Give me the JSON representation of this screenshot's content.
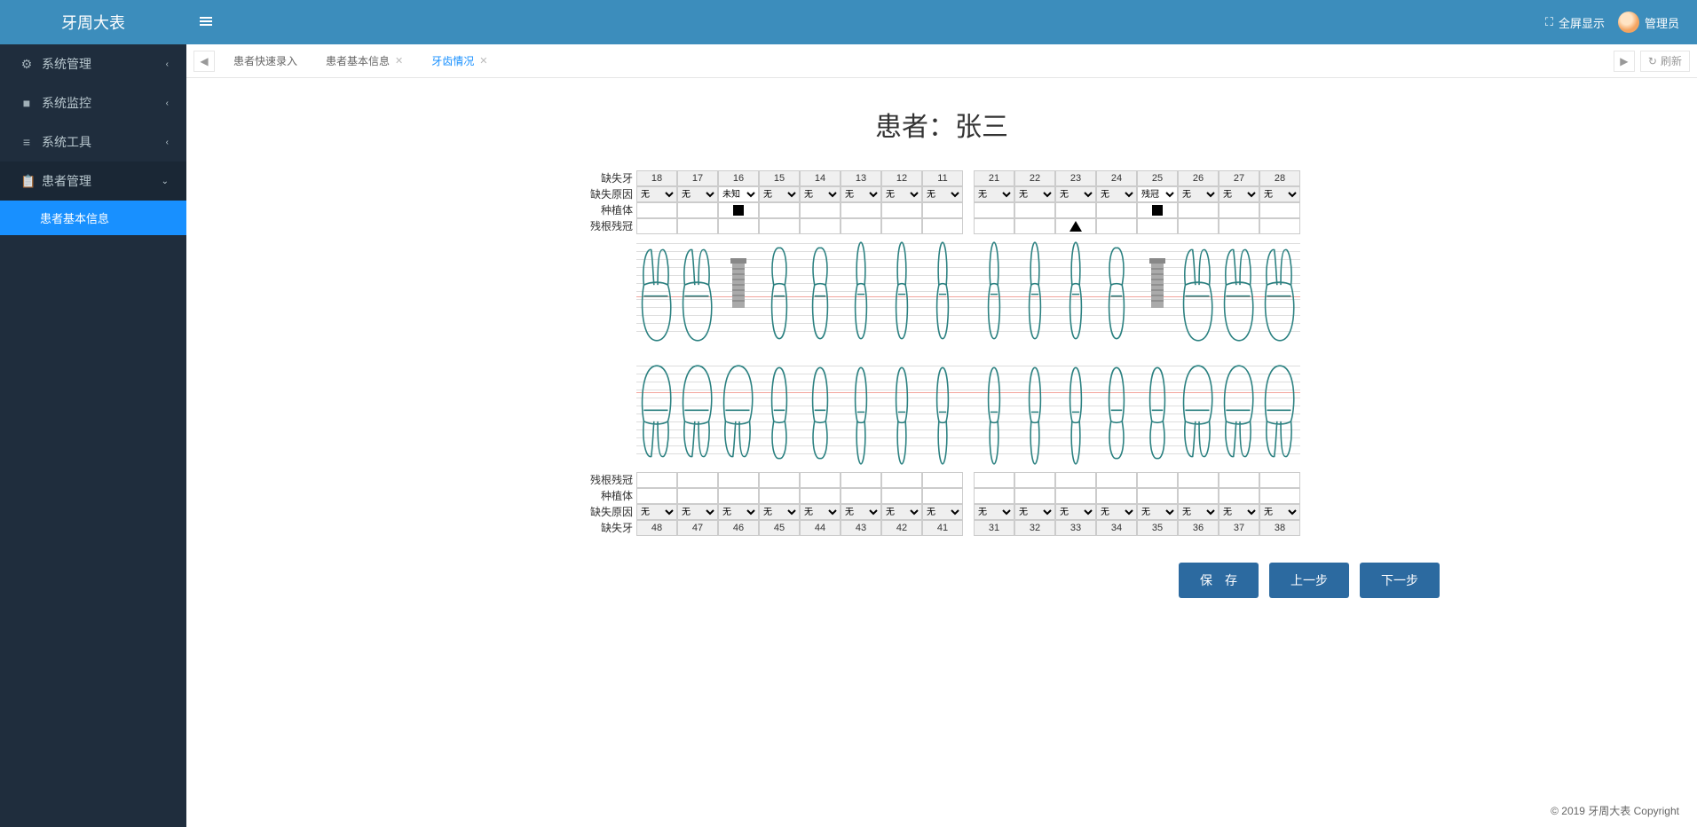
{
  "app_title": "牙周大表",
  "topbar": {
    "fullscreen": "全屏显示",
    "user": "管理员"
  },
  "sidebar": [
    {
      "icon": "⚙",
      "label": "系统管理",
      "expandable": true
    },
    {
      "icon": "■",
      "label": "系统监控",
      "expandable": true
    },
    {
      "icon": "≡",
      "label": "系统工具",
      "expandable": true
    },
    {
      "icon": "📋",
      "label": "患者管理",
      "expandable": true,
      "open": true,
      "children": [
        {
          "label": "患者基本信息",
          "active": true
        }
      ]
    }
  ],
  "tabs": {
    "items": [
      {
        "label": "患者快速录入",
        "closable": false
      },
      {
        "label": "患者基本信息",
        "closable": true
      },
      {
        "label": "牙齿情况",
        "closable": true,
        "active": true
      }
    ],
    "refresh": "刷新"
  },
  "patient": {
    "title": "患者：张三"
  },
  "row_labels": [
    "缺失牙",
    "缺失原因",
    "种植体",
    "残根残冠"
  ],
  "upper_left": [
    "18",
    "17",
    "16",
    "15",
    "14",
    "13",
    "12",
    "11"
  ],
  "upper_right": [
    "21",
    "22",
    "23",
    "24",
    "25",
    "26",
    "27",
    "28"
  ],
  "lower_left": [
    "48",
    "47",
    "46",
    "45",
    "44",
    "43",
    "42",
    "41"
  ],
  "lower_right": [
    "31",
    "32",
    "33",
    "34",
    "35",
    "36",
    "37",
    "38"
  ],
  "reason_default": "无",
  "reason_special": {
    "16": "未知",
    "25": "残冠"
  },
  "implant_at": [
    "16",
    "25"
  ],
  "root_at": [
    "23"
  ],
  "actions": {
    "save": "保　存",
    "prev": "上一步",
    "next": "下一步"
  },
  "footer": "© 2019 牙周大表 Copyright",
  "colors": {
    "tooth_stroke": "#2a8080",
    "implant_fill": "#9e9e9e"
  }
}
